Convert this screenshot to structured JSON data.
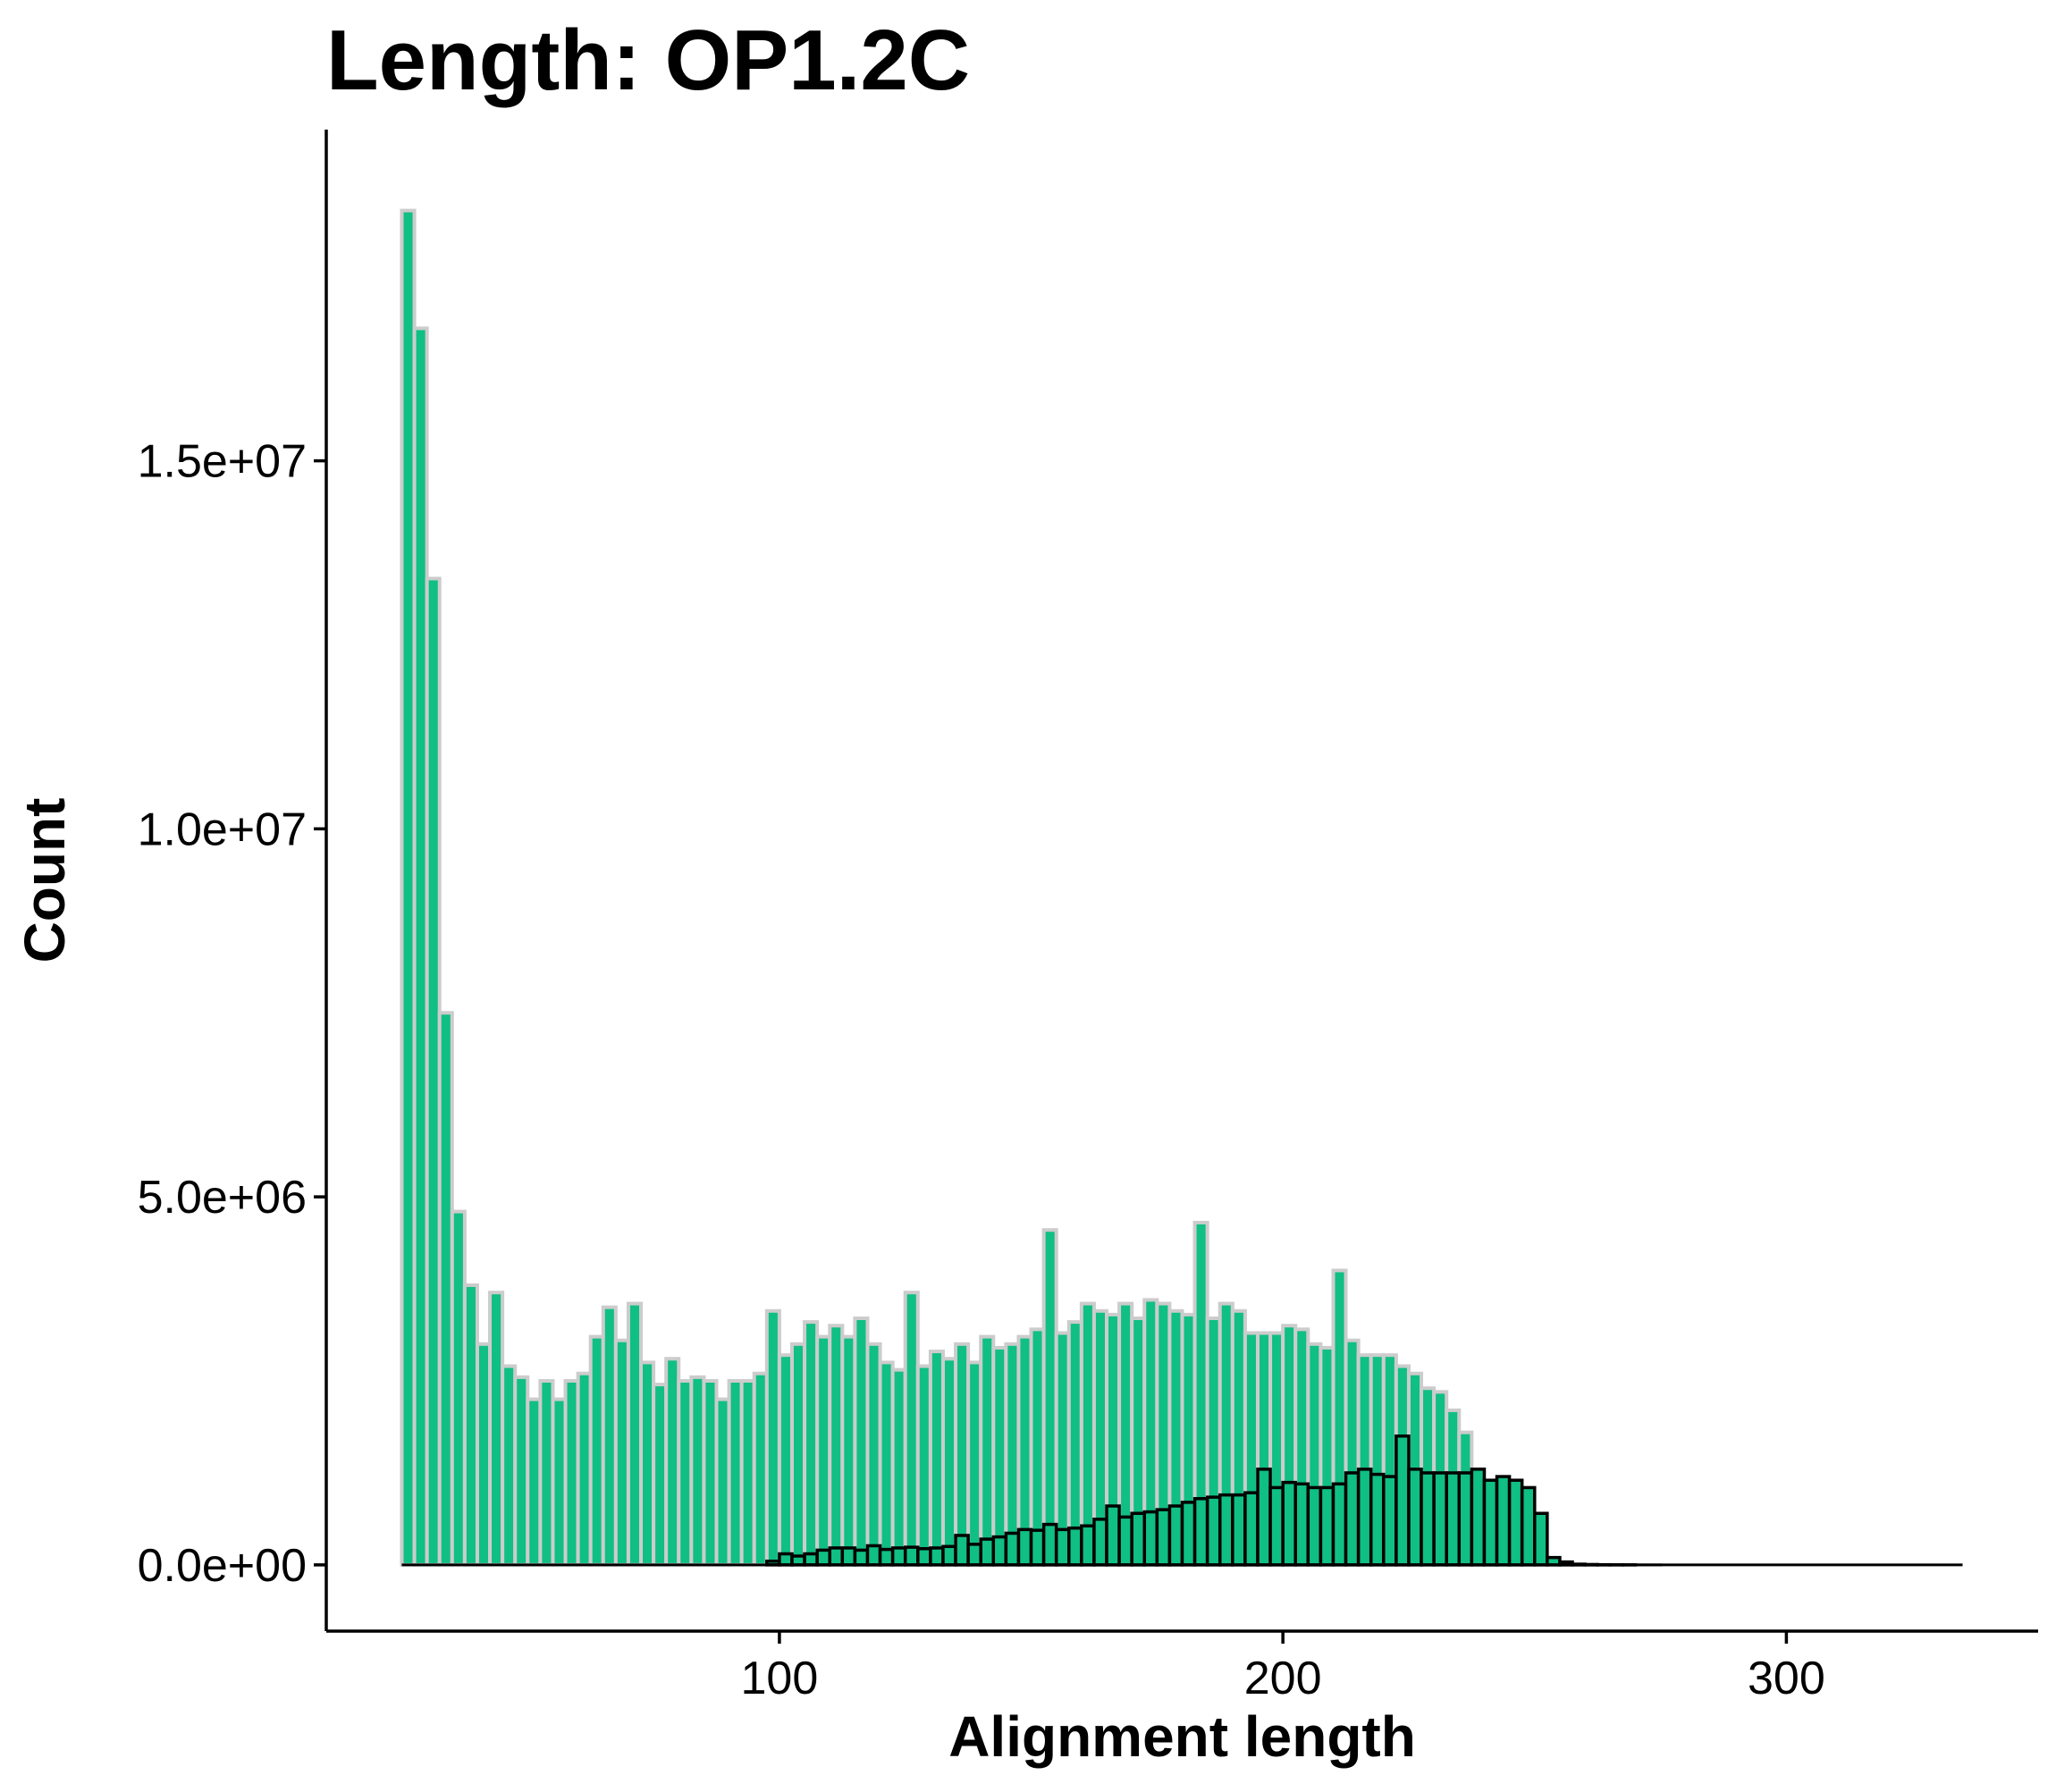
{
  "chart_data": {
    "type": "bar",
    "title": "Length: OP1.2C",
    "xlabel": "Alignment length",
    "ylabel": "Count",
    "x_ticks": [
      100,
      200,
      300
    ],
    "x_tick_labels": [
      "100",
      "200",
      "300"
    ],
    "y_ticks": [
      0,
      5000000,
      10000000,
      15000000
    ],
    "y_tick_labels": [
      "0.0e+00",
      "5.0e+06",
      "1.0e+07",
      "1.5e+07"
    ],
    "xlim": [
      10,
      350
    ],
    "ylim": [
      -900000,
      19500000
    ],
    "bin_width": 2.5,
    "grid": false,
    "legend": "none",
    "series": [
      {
        "role": "all alignments",
        "fill": "#0FBF83",
        "edge": "#CCCCCC",
        "bin_start": 25,
        "values": [
          18400000,
          16800000,
          13400000,
          7500000,
          4800000,
          3800000,
          3000000,
          3700000,
          2700000,
          2550000,
          2250000,
          2500000,
          2250000,
          2500000,
          2600000,
          3100000,
          3500000,
          3050000,
          3550000,
          2750000,
          2450000,
          2800000,
          2500000,
          2550000,
          2500000,
          2250000,
          2500000,
          2500000,
          2600000,
          3450000,
          2850000,
          3000000,
          3300000,
          3100000,
          3250000,
          3100000,
          3350000,
          3000000,
          2750000,
          2650000,
          3700000,
          2700000,
          2900000,
          2800000,
          3000000,
          2750000,
          3100000,
          2950000,
          3000000,
          3100000,
          3200000,
          4550000,
          3150000,
          3300000,
          3550000,
          3450000,
          3400000,
          3550000,
          3350000,
          3600000,
          3550000,
          3450000,
          3400000,
          4650000,
          3350000,
          3550000,
          3450000,
          3150000,
          3150000,
          3150000,
          3250000,
          3200000,
          3000000,
          2950000,
          4000000,
          3050000,
          2850000,
          2850000,
          2850000,
          2700000,
          2600000,
          2400000,
          2350000,
          2100000,
          1800000,
          1300000,
          200000,
          50000,
          20000,
          10000,
          5000,
          3000,
          2000,
          1000,
          800,
          500,
          300,
          200,
          100,
          80,
          50,
          30,
          20,
          10,
          5,
          3,
          0,
          0,
          0,
          0,
          0,
          0,
          0,
          0,
          0,
          0,
          0,
          0,
          0,
          0,
          0,
          0,
          0,
          0,
          0,
          0,
          0,
          0,
          0
        ]
      },
      {
        "role": "subset",
        "fill": "#0FBF83",
        "edge": "#000000",
        "bin_start": 97.5,
        "values": [
          50000,
          150000,
          120000,
          150000,
          200000,
          230000,
          230000,
          200000,
          260000,
          210000,
          230000,
          240000,
          220000,
          230000,
          250000,
          400000,
          280000,
          350000,
          380000,
          430000,
          480000,
          470000,
          550000,
          480000,
          500000,
          530000,
          620000,
          800000,
          650000,
          700000,
          720000,
          750000,
          800000,
          850000,
          900000,
          920000,
          950000,
          950000,
          980000,
          1300000,
          1050000,
          1120000,
          1100000,
          1050000,
          1050000,
          1100000,
          1250000,
          1300000,
          1230000,
          1200000,
          1750000,
          1300000,
          1250000,
          1250000,
          1250000,
          1250000,
          1300000,
          1150000,
          1200000,
          1150000,
          1050000,
          700000,
          100000,
          40000,
          10000,
          5000,
          2000,
          1000,
          500,
          0
        ]
      }
    ],
    "baseline_x_range": [
      25,
      335
    ]
  }
}
